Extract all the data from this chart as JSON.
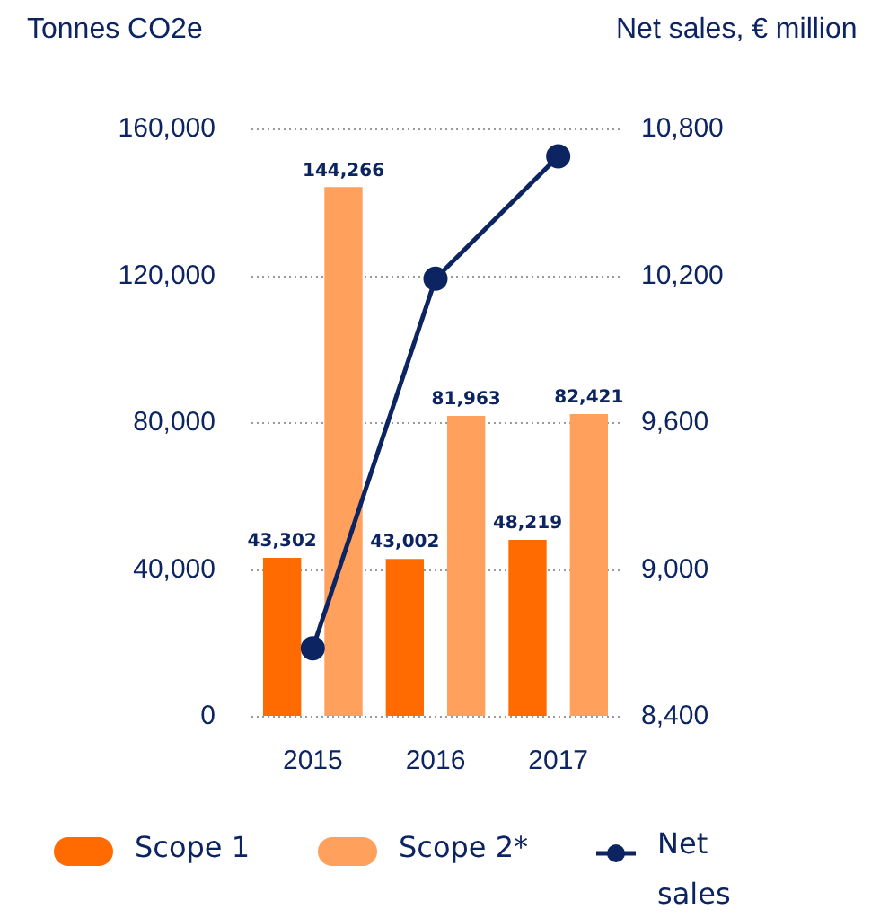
{
  "chart_data": {
    "type": "bar",
    "ylabel": "Tonnes CO2e",
    "y2label": "Net sales, € million",
    "categories": [
      "2015",
      "2016",
      "2017"
    ],
    "series": [
      {
        "name": "Scope 1",
        "color": "#ff6b00",
        "values": [
          43302,
          43002,
          48219
        ],
        "value_labels": [
          "43,302",
          "43,002",
          "48,219"
        ]
      },
      {
        "name": "Scope 2*",
        "color": "#ffa05c",
        "values": [
          144266,
          81963,
          82421
        ],
        "value_labels": [
          "144,266",
          "81,963",
          "82,421"
        ]
      },
      {
        "name": "Net sales",
        "type": "line",
        "axis": "y2",
        "color": "#0c2461",
        "values": [
          8680,
          10190,
          10690
        ],
        "marker": "circle"
      }
    ],
    "ylim": [
      0,
      160000
    ],
    "yticks": [
      0,
      {
        "value": 40000,
        "label": "40,000"
      },
      {
        "value": 80000,
        "label": "80,000"
      },
      {
        "value": 120000,
        "label": "120,000"
      },
      {
        "value": 160000,
        "label": "160,000"
      }
    ],
    "y2lim": [
      8400,
      10800
    ],
    "y2ticks": [
      {
        "value": 8400,
        "label": "8,400"
      },
      {
        "value": 9000,
        "label": "9,000"
      },
      {
        "value": 9600,
        "label": "9,600"
      },
      {
        "value": 10200,
        "label": "10,200"
      },
      {
        "value": 10800,
        "label": "10,800"
      }
    ],
    "grid": "y",
    "legend": "bottom"
  }
}
